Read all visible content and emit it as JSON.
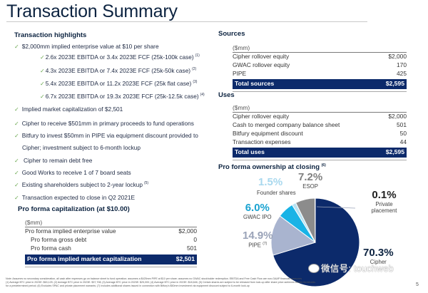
{
  "page": {
    "title": "Transaction Summary",
    "page_number": "5"
  },
  "highlights": {
    "heading": "Transaction highlights",
    "items": [
      {
        "text": "$2,000mm implied enterprise value at $10 per share",
        "sup": "",
        "level": 1
      },
      {
        "text": "2.6x 2023E EBITDA or 3.4x 2023E FCF (25k-100k case)",
        "sup": "(1)",
        "level": 2
      },
      {
        "text": "4.3x 2023E EBITDA or 7.4x 2023E FCF (25k-50k case)",
        "sup": "(2)",
        "level": 2
      },
      {
        "text": "5.4x 2023E EBITDA or 11.2x 2023E FCF (25k flat case)",
        "sup": "(3)",
        "level": 2
      },
      {
        "text": "6.7x 2023E EBITDA or 19.3x 2023E FCF (25k-12.5k case)",
        "sup": "(4)",
        "level": 2
      },
      {
        "text": "Implied market capitalization of $2,501",
        "sup": "",
        "level": 1
      },
      {
        "text": "Cipher to receive $501mm in primary proceeds to fund operations",
        "sup": "",
        "level": 1
      },
      {
        "text": "Bitfury to invest $50mm in PIPE via equipment discount provided to",
        "sup": "",
        "level": 1
      },
      {
        "text": "Cipher; investment subject to 6-month lockup",
        "sup": "",
        "level": 0
      },
      {
        "text": " Cipher to remain debt free",
        "sup": "",
        "level": 1
      },
      {
        "text": "Good Works to receive 1 of 7 board seats",
        "sup": "",
        "level": 1
      },
      {
        "text": "Existing shareholders subject to 2-year lockup",
        "sup": "(5)",
        "level": 1
      },
      {
        "text": "Transaction expected to close in Q2 2021E",
        "sup": "",
        "level": 1
      }
    ],
    "check_icon": "✓"
  },
  "capitalization": {
    "heading": "Pro forma capitalization (at $10.00)",
    "unit": "($mm)",
    "rows": [
      {
        "label": "Pro forma implied enterprise value",
        "value": "$2,000",
        "indent": false
      },
      {
        "label": "Pro forma gross debt",
        "value": "0",
        "indent": true
      },
      {
        "label": "Pro forma cash",
        "value": "501",
        "indent": true
      }
    ],
    "total": {
      "label": "Pro forma implied market capitalization",
      "value": "$2,501"
    }
  },
  "sources": {
    "heading": "Sources",
    "unit": "($mm)",
    "rows": [
      {
        "label": "Cipher rollover equity",
        "value": "$2,000"
      },
      {
        "label": "GWAC rollover equity",
        "value": "170"
      },
      {
        "label": "PIPE",
        "value": "425"
      }
    ],
    "total": {
      "label": "Total sources",
      "value": "$2,595"
    }
  },
  "uses": {
    "heading": "Uses",
    "unit": "($mm)",
    "rows": [
      {
        "label": "Cipher rollover equity",
        "value": "$2,000"
      },
      {
        "label": "Cash to merged company balance sheet",
        "value": "501"
      },
      {
        "label": "Bitfury equipment discount",
        "value": "50"
      },
      {
        "label": "Transaction expenses",
        "value": "44"
      }
    ],
    "total": {
      "label": "Total uses",
      "value": "$2,595"
    }
  },
  "ownership": {
    "heading": "Pro forma ownership at closing",
    "heading_sup": "(6)",
    "slices": [
      {
        "name": "Cipher",
        "pct_label": "70.3%",
        "value": 70.3,
        "color": "#0c2a6b",
        "label_color": "#0c2340",
        "sup": ""
      },
      {
        "name": "PIPE",
        "pct_label": "14.9%",
        "value": 14.9,
        "color": "#a9b4cf",
        "label_color": "#9aa3b8",
        "sup": "(7)"
      },
      {
        "name": "GWAC IPO",
        "pct_label": "6.0%",
        "value": 6.0,
        "color": "#19b3e6",
        "label_color": "#1aa3d1",
        "sup": ""
      },
      {
        "name": "Founder shares",
        "pct_label": "1.5%",
        "value": 1.5,
        "color": "#b8e2f2",
        "label_color": "#a8d8ee",
        "sup": ""
      },
      {
        "name": "ESOP",
        "pct_label": "7.2%",
        "value": 7.2,
        "color": "#8c8c8c",
        "label_color": "#7f7f7f",
        "sup": ""
      },
      {
        "name": "Private placement",
        "pct_label": "0.1%",
        "value": 0.1,
        "color": "#0c2a6b",
        "label_color": "#222222",
        "sup": ""
      }
    ]
  },
  "chart_data": {
    "type": "pie",
    "title": "Pro forma ownership at closing",
    "categories": [
      "Cipher",
      "PIPE",
      "GWAC IPO",
      "Founder shares",
      "ESOP",
      "Private placement"
    ],
    "values": [
      70.3,
      14.9,
      6.0,
      1.5,
      7.2,
      0.1
    ],
    "unit": "%"
  },
  "footnote": {
    "lines": [
      "Note: Assumes no secondary consideration, all cash after expenses go on balance sheet to fund operation; assumes a $425mm PIPE at $10 per share; assumes no GWAC stockholder redemption. EBITDA and Free Cash Flow are non-GAAP financial measures",
      "(1) Average BTC price in 2023E: $63,125; (2) Average BTC price in 2023E: $37,708; (3) Average BTC price in 2023E: $25,000; (4) Average BTC price in 2023E: $18,646; (5) Certain shares are subject to be released from lock-up after share price achieves certain thresholds",
      "for a predetermined period; (6) Excludes SPAC and private placement warrants; (7) Includes additional shares issued in connection with Bitfury's $50mm investment via equipment discount subject to 6-month lock-up"
    ]
  },
  "watermark": {
    "text": "微信号: touchweb"
  }
}
